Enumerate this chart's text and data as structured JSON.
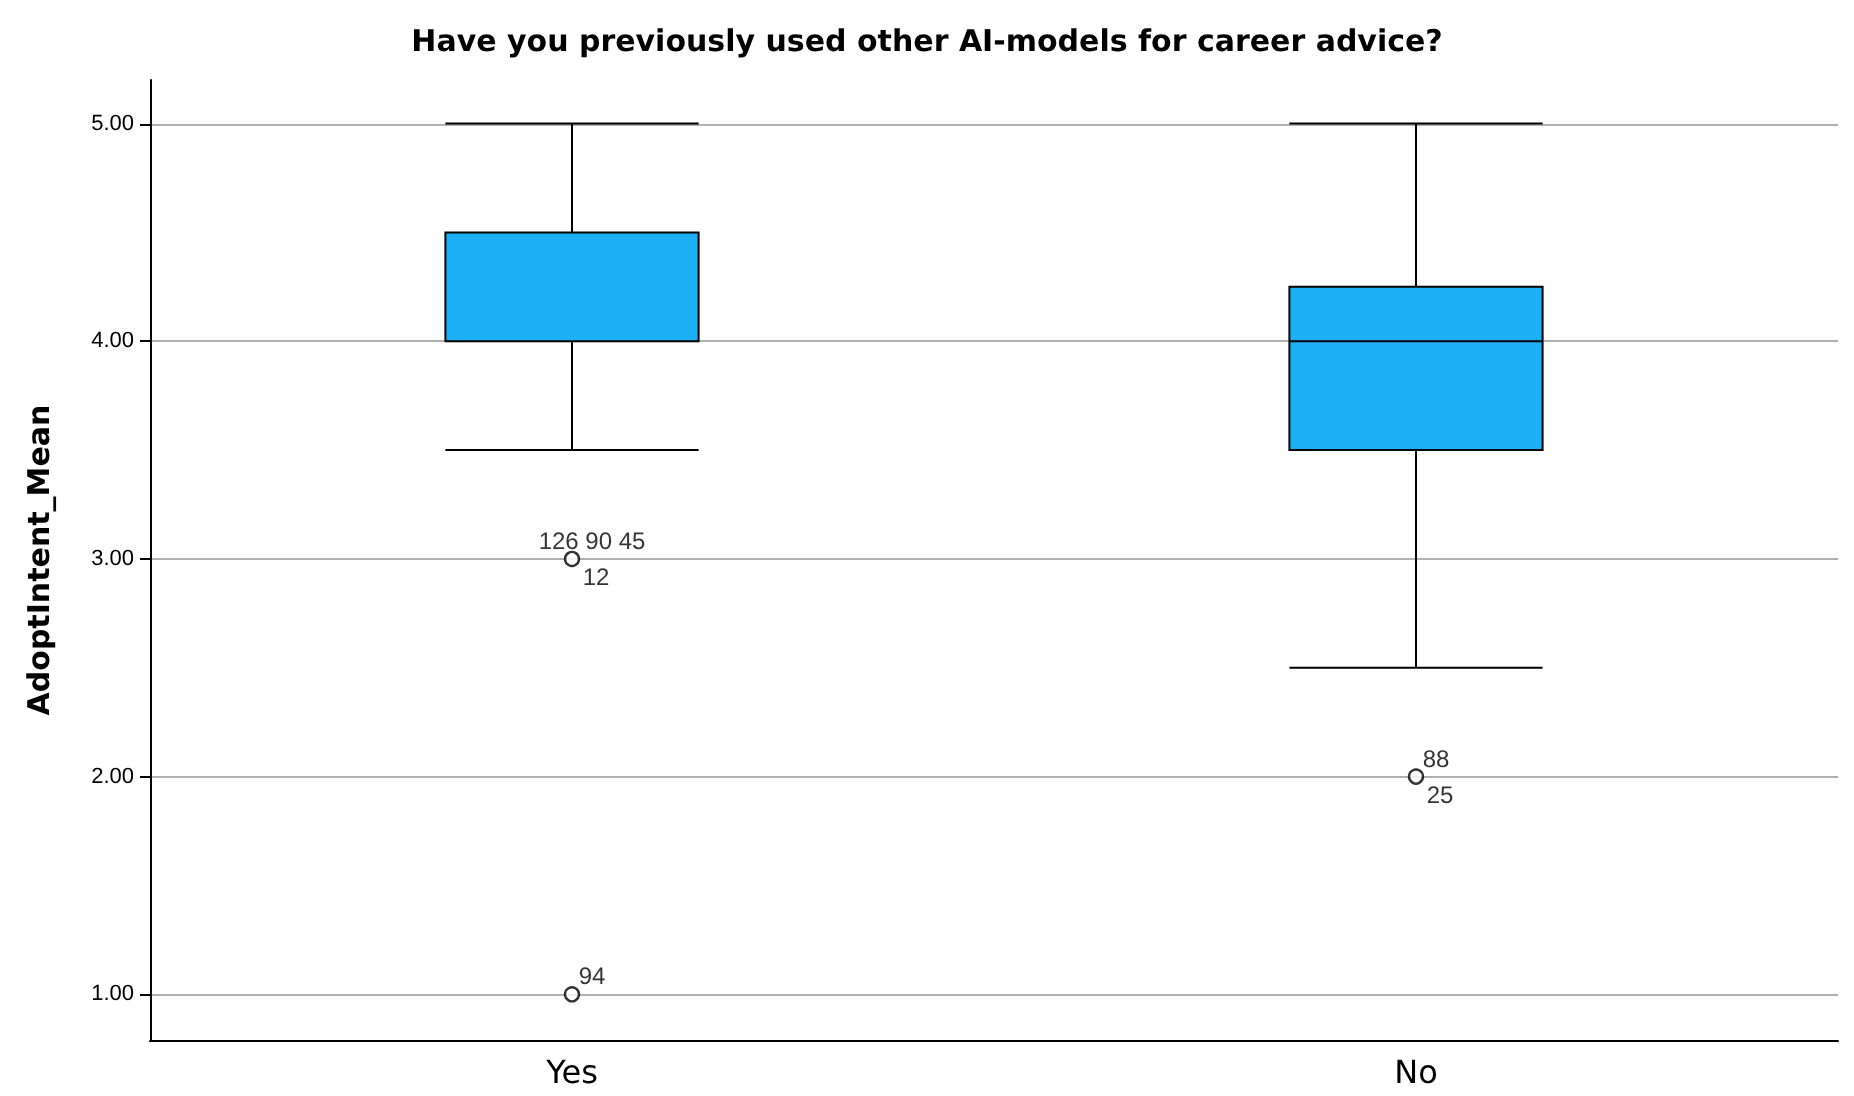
{
  "chart_data": {
    "type": "box",
    "title": "Have you previously used other AI-models for career advice?",
    "ylabel": "AdoptIntent_Mean",
    "categories": [
      "Yes",
      "No"
    ],
    "series": [
      {
        "color": "#1eb0f6",
        "boxes": [
          {
            "low": 3.5,
            "q1": 4.0,
            "median": 4.0,
            "q3": 4.5,
            "high": 5.0,
            "outliers": [
              3.0,
              1.0
            ]
          },
          {
            "low": 2.5,
            "q1": 3.5,
            "median": 4.0,
            "q3": 4.25,
            "high": 5.0,
            "outliers": [
              2.0
            ]
          }
        ]
      }
    ],
    "ylim": [
      0.79,
      5.2
    ],
    "yticks": [
      {
        "value": 1,
        "label": "1.00"
      },
      {
        "value": 2,
        "label": "2.00"
      },
      {
        "value": 3,
        "label": "3.00"
      },
      {
        "value": 4,
        "label": "4.00"
      },
      {
        "value": 5,
        "label": "5.00"
      }
    ],
    "grid": "y",
    "marker": "circle",
    "annotations": [
      "126 90 45",
      "12",
      "94",
      "88",
      "25"
    ]
  }
}
